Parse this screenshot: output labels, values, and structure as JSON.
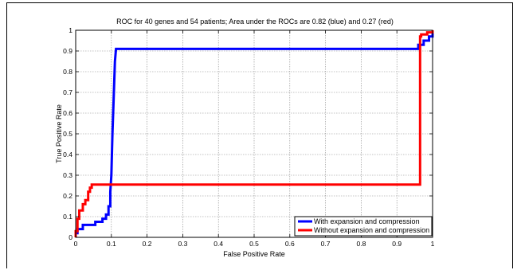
{
  "chart_data": {
    "type": "line",
    "title": "ROC for 40 genes and 54 patients; Area under the ROCs are  0.82 (blue) and 0.27 (red)",
    "xlabel": "False Positive Rate",
    "ylabel": "True Positive Rate",
    "xlim": [
      0,
      1
    ],
    "ylim": [
      0,
      1
    ],
    "xticks": [
      0,
      0.1,
      0.2,
      0.3,
      0.4,
      0.5,
      0.6,
      0.7,
      0.8,
      0.9,
      1
    ],
    "yticks": [
      0,
      0.1,
      0.2,
      0.3,
      0.4,
      0.5,
      0.6,
      0.7,
      0.8,
      0.9,
      1
    ],
    "xtick_labels": [
      "0",
      "0.1",
      "0.2",
      "0.3",
      "0.4",
      "0.5",
      "0.6",
      "0.7",
      "0.8",
      "0.9",
      "1"
    ],
    "ytick_labels": [
      "0",
      "0.1",
      "0.2",
      "0.3",
      "0.4",
      "0.5",
      "0.6",
      "0.7",
      "0.8",
      "0.9",
      "1"
    ],
    "grid": true,
    "legend_position": "bottom-right",
    "series": [
      {
        "name": "With expansion and compression",
        "color": "#0000ff",
        "x": [
          0,
          0,
          0.005,
          0.005,
          0.02,
          0.02,
          0.055,
          0.055,
          0.075,
          0.075,
          0.085,
          0.085,
          0.092,
          0.092,
          0.097,
          0.097,
          0.1,
          0.103,
          0.107,
          0.11,
          0.113,
          0.96,
          0.96,
          0.975,
          0.975,
          0.99,
          0.99,
          1,
          1
        ],
        "y": [
          0,
          0.02,
          0.02,
          0.04,
          0.04,
          0.06,
          0.06,
          0.075,
          0.075,
          0.09,
          0.09,
          0.11,
          0.11,
          0.15,
          0.15,
          0.22,
          0.3,
          0.5,
          0.7,
          0.85,
          0.91,
          0.91,
          0.93,
          0.93,
          0.95,
          0.95,
          0.97,
          0.97,
          1
        ]
      },
      {
        "name": "Without expansion and compression",
        "color": "#ff0000",
        "x": [
          0,
          0,
          0.005,
          0.005,
          0.01,
          0.01,
          0.02,
          0.02,
          0.027,
          0.027,
          0.035,
          0.035,
          0.04,
          0.04,
          0.045,
          0.045,
          0.965,
          0.965,
          0.968,
          0.968,
          0.985,
          0.985,
          1,
          1
        ],
        "y": [
          0,
          0.03,
          0.03,
          0.09,
          0.09,
          0.13,
          0.13,
          0.16,
          0.16,
          0.18,
          0.18,
          0.22,
          0.22,
          0.24,
          0.24,
          0.255,
          0.255,
          0.97,
          0.97,
          0.98,
          0.98,
          0.99,
          0.99,
          1
        ]
      }
    ]
  }
}
